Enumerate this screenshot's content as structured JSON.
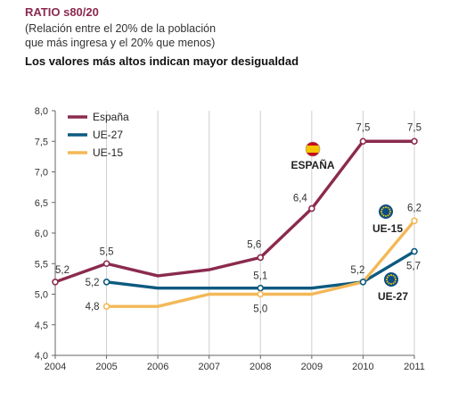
{
  "header": {
    "title": "RATIO s80/20",
    "subtitle_line1": "(Relación entre el 20% de la población",
    "subtitle_line2": "que más ingresa y el 20% que menos)",
    "note": "Los valores más altos indican mayor desigualdad"
  },
  "chart_data": {
    "type": "line",
    "x": [
      "2004",
      "2005",
      "2006",
      "2007",
      "2008",
      "2009",
      "2010",
      "2011"
    ],
    "ylim": [
      4.0,
      8.0
    ],
    "yticks": [
      "4,0",
      "4,5",
      "5,0",
      "5,5",
      "6,0",
      "6,5",
      "7,0",
      "7,5",
      "8,0"
    ],
    "grid": "vertical",
    "legend_position": "top-left",
    "series": [
      {
        "name": "España",
        "color": "#8b2a4e",
        "values": [
          5.2,
          5.5,
          5.3,
          5.4,
          5.6,
          6.4,
          7.5,
          7.5
        ],
        "labels": [
          "5,2",
          "5,5",
          null,
          null,
          "5,6",
          "6,4",
          "7,5",
          "7,5"
        ],
        "markers": [
          true,
          true,
          false,
          false,
          true,
          true,
          true,
          true
        ]
      },
      {
        "name": "UE-27",
        "color": "#0d5a80",
        "values": [
          null,
          5.2,
          5.1,
          5.1,
          5.1,
          5.1,
          5.2,
          5.7
        ],
        "labels": [
          null,
          "5,2",
          null,
          null,
          "5,1",
          null,
          "5,2",
          "5,7"
        ],
        "markers": [
          false,
          true,
          false,
          false,
          true,
          false,
          true,
          true
        ]
      },
      {
        "name": "UE-15",
        "color": "#f3b857",
        "values": [
          null,
          4.8,
          4.8,
          5.0,
          5.0,
          5.0,
          5.2,
          6.2
        ],
        "labels": [
          null,
          "4,8",
          null,
          null,
          "5,0",
          null,
          null,
          "6,2"
        ],
        "markers": [
          false,
          true,
          false,
          false,
          true,
          false,
          false,
          true
        ]
      }
    ],
    "annotations": [
      {
        "text": "ESPAÑA",
        "icon": "spain-flag-icon"
      },
      {
        "text": "UE-15",
        "icon": "eu-flag-icon"
      },
      {
        "text": "UE-27",
        "icon": "eu-flag-icon"
      }
    ]
  }
}
